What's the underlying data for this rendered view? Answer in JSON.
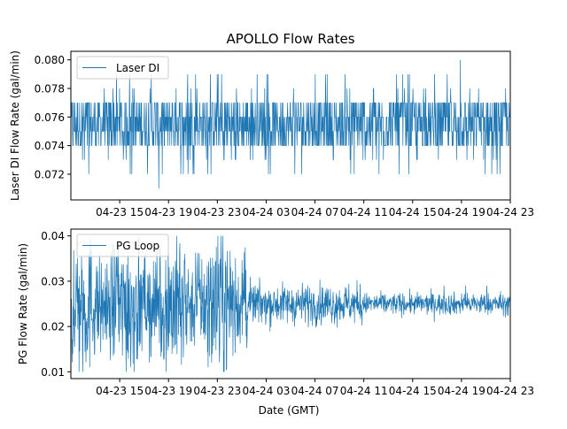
{
  "figure": {
    "title": "APOLLO Flow Rates",
    "xlabel": "Date (GMT)"
  },
  "colors": {
    "series": "#1f77b4",
    "axes": "#000000",
    "legend_border": "#cccccc",
    "background": "#ffffff"
  },
  "chart_data": [
    {
      "type": "line",
      "title": "APOLLO Flow Rates",
      "xlabel": "",
      "ylabel": "Laser DI Flow Rate (gal/min)",
      "x_range_hours": [
        0,
        36
      ],
      "ylim": [
        0.0702,
        0.0806
      ],
      "yticks": [
        0.072,
        0.074,
        0.076,
        0.078,
        0.08
      ],
      "ytick_labels": [
        "0.072",
        "0.074",
        "0.076",
        "0.078",
        "0.080"
      ],
      "xticks_hours": [
        4,
        8,
        12,
        16,
        20,
        24,
        28,
        32,
        36
      ],
      "xtick_labels": [
        "04-23 15",
        "04-23 19",
        "04-23 23",
        "04-24 03",
        "04-24 07",
        "04-24 11",
        "04-24 15",
        "04-24 19",
        "04-24 23"
      ],
      "legend": {
        "label": "Laser DI",
        "location": "top-left"
      },
      "series": [
        {
          "name": "Laser DI",
          "values_description": "high-frequency flow rate samples quantized to 0.001 gal/min",
          "baseline": 0.0755,
          "typical_band": [
            0.074,
            0.077
          ],
          "min": 0.071,
          "max": 0.08
        }
      ]
    },
    {
      "type": "line",
      "title": "",
      "xlabel": "Date (GMT)",
      "ylabel": "PG Flow Rate (gal/min)",
      "x_range_hours": [
        0,
        36
      ],
      "ylim": [
        0.0085,
        0.0415
      ],
      "yticks": [
        0.01,
        0.02,
        0.03,
        0.04
      ],
      "ytick_labels": [
        "0.01",
        "0.02",
        "0.03",
        "0.04"
      ],
      "xticks_hours": [
        4,
        8,
        12,
        16,
        20,
        24,
        28,
        32,
        36
      ],
      "xtick_labels": [
        "04-23 15",
        "04-23 19",
        "04-23 23",
        "04-24 03",
        "04-24 07",
        "04-24 11",
        "04-24 15",
        "04-24 19",
        "04-24 23"
      ],
      "legend": {
        "label": "PG Loop",
        "location": "top-left"
      },
      "series": [
        {
          "name": "PG Loop",
          "values_description": "noisy flow rate; wide spread early, settling after ~04-24 01",
          "baseline": 0.025,
          "early_band": [
            0.012,
            0.038
          ],
          "late_band": [
            0.023,
            0.027
          ],
          "min": 0.01,
          "max": 0.04
        }
      ]
    }
  ]
}
